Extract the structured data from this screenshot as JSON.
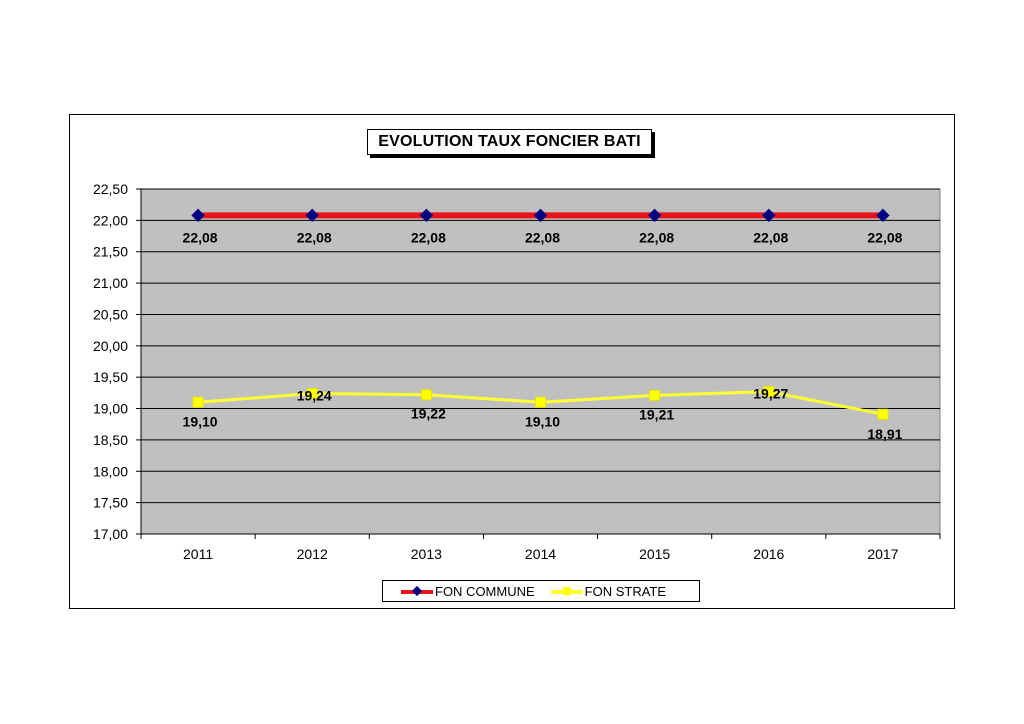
{
  "chart_data": {
    "type": "line",
    "title": "EVOLUTION TAUX FONCIER BATI",
    "categories": [
      "2011",
      "2012",
      "2013",
      "2014",
      "2015",
      "2016",
      "2017"
    ],
    "ylim": [
      17.0,
      22.5
    ],
    "yticks": [
      "17,00",
      "17,50",
      "18,00",
      "18,50",
      "19,00",
      "19,50",
      "20,00",
      "20,50",
      "21,00",
      "21,50",
      "22,00",
      "22,50"
    ],
    "ytick_values": [
      17.0,
      17.5,
      18.0,
      18.5,
      19.0,
      19.5,
      20.0,
      20.5,
      21.0,
      21.5,
      22.0,
      22.5
    ],
    "grid": true,
    "plot_background": "#c0c0c0",
    "legend_position": "bottom",
    "series": [
      {
        "name": "FON COMMUNE",
        "values": [
          22.08,
          22.08,
          22.08,
          22.08,
          22.08,
          22.08,
          22.08
        ],
        "labels": [
          "22,08",
          "22,08",
          "22,08",
          "22,08",
          "22,08",
          "22,08",
          "22,08"
        ],
        "line_color": "#e8141b",
        "marker_color": "#000080",
        "marker": "diamond"
      },
      {
        "name": "FON STRATE",
        "values": [
          19.1,
          19.24,
          19.22,
          19.1,
          19.21,
          19.27,
          18.91
        ],
        "labels": [
          "19,10",
          "19,24",
          "19,22",
          "19,10",
          "19,21",
          "19,27",
          "18,91"
        ],
        "line_color": "#ffff33",
        "marker_color": "#ffff00",
        "marker": "square"
      }
    ]
  }
}
